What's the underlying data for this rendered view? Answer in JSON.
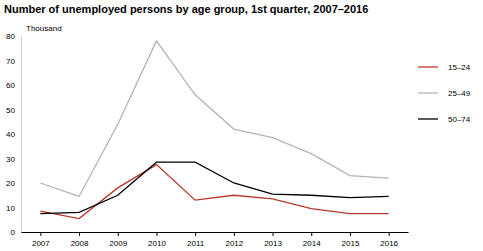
{
  "chart_data": {
    "type": "line",
    "title": "Number of unemployed persons by age group, 1st quarter, 2007–2016",
    "y_label": "Thousand",
    "categories": [
      "2007",
      "2008",
      "2009",
      "2010",
      "2011",
      "2012",
      "2013",
      "2014",
      "2015",
      "2016"
    ],
    "series": [
      {
        "name": "15–24",
        "color": "#b8392e",
        "values": [
          8.5,
          5.5,
          18,
          27.5,
          13,
          15,
          13.5,
          9.5,
          7.5,
          7.5
        ]
      },
      {
        "name": "25–49",
        "color": "#b5b5b5",
        "values": [
          20,
          14.5,
          44,
          78,
          56,
          42,
          38.5,
          32,
          23,
          22
        ]
      },
      {
        "name": "50–74",
        "color": "#000000",
        "values": [
          7.5,
          8,
          15,
          28.5,
          28.5,
          20,
          15.5,
          15,
          14,
          14.5
        ]
      }
    ],
    "ylim": [
      0,
      80
    ],
    "yticks": [
      0,
      10,
      20,
      30,
      40,
      50,
      60,
      70,
      80
    ],
    "grid": false,
    "legend": "right"
  }
}
